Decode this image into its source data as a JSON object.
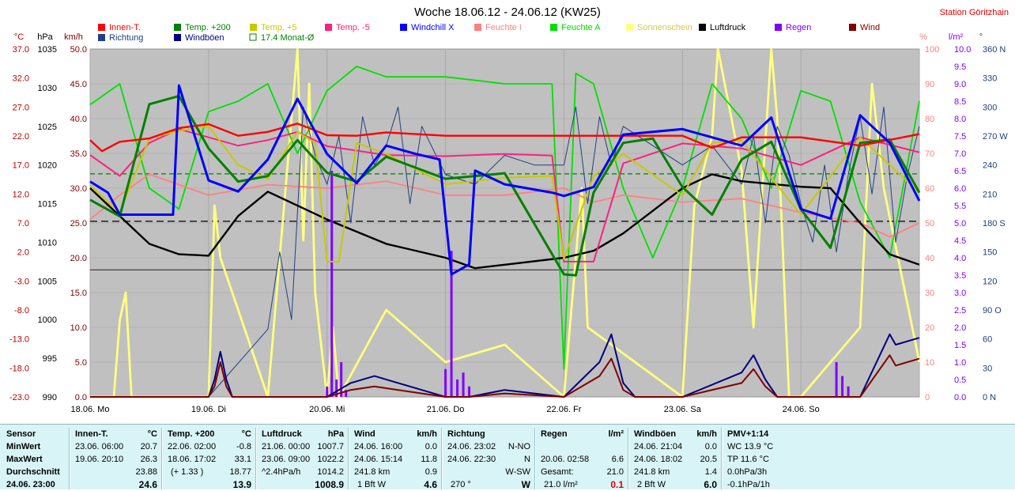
{
  "title": "Woche 18.06.12 - 24.06.12 (KW25)",
  "station": "Station Göritzhain",
  "colors": {
    "background": "#ffffff",
    "plot_bg": "#c0c0c0",
    "innen": "#ff0000",
    "temp200": "#008000",
    "temp5": "#c8c800",
    "temp_m5": "#ff2080",
    "windchill": "#0000ff",
    "feuchte_i": "#ff8080",
    "feuchte_a": "#00e000",
    "sonne": "#ffff80",
    "luftdruck": "#000000",
    "regen": "#8000ff",
    "wind": "#800000",
    "richtung": "#204080",
    "windboeen": "#000080",
    "monat": "#008000",
    "panel": "#d8f4f6"
  },
  "chart_data": {
    "type": "line",
    "title": "Woche 18.06.12 - 24.06.12 (KW25)",
    "x_labels": [
      "18.06. Mo",
      "19.06. Di",
      "20.06. Mi",
      "21.06. Do",
      "22.06. Fr",
      "23.06. Sa",
      "24.06. So"
    ],
    "axes": {
      "celsius": {
        "unit": "°C",
        "range": [
          -23.0,
          40.0
        ],
        "ticks": [
          "37.0",
          "32.0",
          "27.0",
          "22.0",
          "17.0",
          "12.0",
          "7.0",
          "2.0",
          "-3.0",
          "-8.0",
          "-13.0",
          "-18.0",
          "-23.0"
        ]
      },
      "hpa": {
        "unit": "hPa",
        "range": [
          990,
          1040
        ],
        "ticks": [
          "1035",
          "1030",
          "1025",
          "1020",
          "1015",
          "1010",
          "1005",
          "1000",
          "995",
          "990"
        ]
      },
      "kmh": {
        "unit": "km/h",
        "range": [
          0.0,
          50.0
        ],
        "ticks": [
          "50.0",
          "45.0",
          "40.0",
          "35.0",
          "30.0",
          "25.0",
          "20.0",
          "15.0",
          "10.0",
          "5.0",
          "0.0"
        ]
      },
      "percent": {
        "unit": "%",
        "range": [
          0,
          100
        ],
        "ticks": [
          "100",
          "90",
          "80",
          "70",
          "60",
          "50",
          "40",
          "30",
          "20",
          "10",
          "0"
        ]
      },
      "lm2": {
        "unit": "l/m²",
        "range": [
          0.0,
          10.0
        ],
        "ticks": [
          "10.0",
          "9.5",
          "9.0",
          "8.5",
          "8.0",
          "7.5",
          "7.0",
          "6.5",
          "6.0",
          "5.5",
          "5.0",
          "4.5",
          "4.0",
          "3.5",
          "3.0",
          "2.5",
          "2.0",
          "1.5",
          "1.0",
          "0.5",
          "0.0"
        ]
      },
      "deg": {
        "unit": "°",
        "range": [
          0,
          360
        ],
        "ticks": [
          "360 N",
          "330",
          "300",
          "270 W",
          "240",
          "210",
          "180 S",
          "150",
          "120",
          "90 O",
          "60",
          "30",
          "0 N"
        ]
      }
    },
    "legend": [
      {
        "name": "Innen-T.",
        "color": "#ff0000",
        "style": "box"
      },
      {
        "name": "Temp. +200",
        "color": "#008000",
        "style": "box"
      },
      {
        "name": "Temp. +5",
        "color": "#c8c800",
        "style": "box"
      },
      {
        "name": "Temp. -5",
        "color": "#ff2080",
        "style": "box"
      },
      {
        "name": "Windchill X",
        "color": "#0000ff",
        "style": "box"
      },
      {
        "name": "Feuchte I",
        "color": "#ff8080",
        "style": "box"
      },
      {
        "name": "Feuchte A",
        "color": "#00e000",
        "style": "box"
      },
      {
        "name": "Sonnenschein",
        "color": "#ffff80",
        "style": "box"
      },
      {
        "name": "Luftdruck",
        "color": "#000000",
        "style": "box"
      },
      {
        "name": "Regen",
        "color": "#8000ff",
        "style": "box"
      },
      {
        "name": "Wind",
        "color": "#800000",
        "style": "box"
      },
      {
        "name": "Richtung",
        "color": "#204080",
        "style": "box"
      },
      {
        "name": "Windböen",
        "color": "#000080",
        "style": "box"
      },
      {
        "name": "17.4 Monat-Ø",
        "color": "#008000",
        "style": "outline"
      }
    ],
    "reference_lines": [
      {
        "name": "Monat-Ø",
        "axis": "celsius",
        "value": 17.4,
        "color": "#008000",
        "dash": "6,4"
      },
      {
        "axis": "celsius",
        "value": 8.8,
        "color": "#000000",
        "dash": "9,5"
      },
      {
        "axis": "celsius",
        "value": 0.0,
        "color": "#404040",
        "dash": ""
      }
    ],
    "series": [
      {
        "name": "Innen-T.",
        "axis": "celsius",
        "color": "#ff0000",
        "width": 2.4,
        "x": [
          0,
          0.1,
          0.25,
          0.5,
          0.75,
          1.0,
          1.25,
          1.5,
          1.75,
          2.0,
          2.25,
          2.5,
          3.0,
          3.5,
          4.0,
          4.25,
          4.5,
          5.0,
          5.25,
          5.5,
          6.0,
          6.5,
          7.0
        ],
        "y": [
          23.5,
          21.5,
          23.2,
          23.8,
          25.7,
          26.4,
          24.3,
          25.0,
          26.5,
          24.4,
          24.3,
          24.9,
          24.3,
          24.3,
          24.3,
          24.3,
          24.3,
          24.3,
          22.1,
          24.0,
          24.0,
          22.5,
          24.6
        ]
      },
      {
        "name": "Temp. +5",
        "axis": "celsius",
        "color": "#c8c800",
        "width": 2.0,
        "x": [
          0,
          0.25,
          0.5,
          0.75,
          1.0,
          1.25,
          1.5,
          1.75,
          1.9,
          2.0,
          2.1,
          2.25,
          2.5,
          3.0,
          3.5,
          3.9,
          4.0,
          4.25,
          4.5,
          5.0,
          5.25,
          5.5,
          6.0,
          6.5,
          7.0
        ],
        "y": [
          15.3,
          10.5,
          23.8,
          25.2,
          26.0,
          19.0,
          16.5,
          25.0,
          23.0,
          1.5,
          1.5,
          23.0,
          21.0,
          15.5,
          16.7,
          17.0,
          2.0,
          17.0,
          21.0,
          13.5,
          23.0,
          23.4,
          10.0,
          24.0,
          14.0
        ]
      },
      {
        "name": "Temp. -5",
        "axis": "celsius",
        "color": "#ff2080",
        "width": 2.0,
        "x": [
          0,
          0.25,
          0.5,
          0.75,
          1.0,
          1.25,
          1.5,
          1.75,
          2.0,
          2.5,
          3.0,
          3.5,
          3.9,
          4.0,
          4.25,
          4.5,
          5.0,
          5.5,
          6.0,
          6.5,
          7.0
        ],
        "y": [
          20.8,
          17.0,
          23.0,
          25.5,
          24.0,
          22.5,
          23.5,
          25.0,
          22.4,
          20.8,
          20.6,
          21.0,
          20.7,
          1.5,
          1.5,
          19.3,
          22.9,
          22.0,
          19.0,
          24.0,
          21.3
        ]
      },
      {
        "name": "Windchill X",
        "axis": "celsius",
        "color": "#0000ff",
        "width": 3.0,
        "x": [
          0,
          0.15,
          0.25,
          0.7,
          0.75,
          1.0,
          1.25,
          1.5,
          1.75,
          2.0,
          2.25,
          2.5,
          2.75,
          2.95,
          3.05,
          3.2,
          3.25,
          3.5,
          3.9,
          4.0,
          4.25,
          4.5,
          5.0,
          5.5,
          5.75,
          6.0,
          6.25,
          6.5,
          6.75,
          7.0
        ],
        "y": [
          16.0,
          14.0,
          10.0,
          10.0,
          33.4,
          16.2,
          14.2,
          20.0,
          31.0,
          21.0,
          15.7,
          22.5,
          21.0,
          20.0,
          -0.8,
          1.0,
          18.0,
          15.5,
          14.0,
          13.4,
          15.0,
          24.5,
          25.5,
          22.5,
          27.6,
          11.0,
          9.3,
          28.0,
          23.0,
          12.5
        ]
      },
      {
        "name": "Temp. +200",
        "axis": "celsius",
        "color": "#008000",
        "width": 3.0,
        "x": [
          0,
          0.25,
          0.5,
          0.75,
          1.0,
          1.25,
          1.5,
          1.75,
          2.0,
          2.25,
          2.5,
          3.0,
          3.5,
          4.0,
          4.1,
          4.25,
          4.5,
          4.75,
          5.0,
          5.25,
          5.5,
          5.75,
          6.0,
          6.25,
          6.5,
          6.75,
          7.0
        ],
        "y": [
          12.7,
          9.7,
          30.0,
          31.5,
          22.0,
          16.0,
          17.0,
          23.5,
          17.6,
          16.0,
          20.5,
          16.5,
          17.5,
          -0.8,
          -1.0,
          14.0,
          23.0,
          23.8,
          15.0,
          10.0,
          20.0,
          23.2,
          11.0,
          4.0,
          23.0,
          23.6,
          14.0
        ]
      },
      {
        "name": "Feuchte I",
        "axis": "percent",
        "color": "#ff8080",
        "width": 1.8,
        "x": [
          0,
          0.25,
          0.5,
          1.0,
          1.5,
          2.0,
          2.5,
          3.0,
          3.5,
          4.0,
          4.25,
          4.5,
          5.0,
          5.5,
          6.0,
          6.5,
          6.75,
          7.0
        ],
        "y": [
          51,
          58,
          64,
          58,
          61,
          60,
          62,
          58,
          58,
          60,
          56,
          58,
          56,
          57,
          53,
          50,
          46,
          50
        ]
      },
      {
        "name": "Feuchte A",
        "axis": "percent",
        "color": "#00e000",
        "width": 1.8,
        "x": [
          0,
          0.25,
          0.5,
          0.75,
          1.0,
          1.25,
          1.5,
          1.75,
          2.0,
          2.25,
          2.5,
          3.0,
          3.5,
          3.9,
          4.0,
          4.1,
          4.25,
          4.5,
          4.75,
          5.0,
          5.25,
          5.5,
          5.75,
          6.0,
          6.25,
          6.5,
          6.75,
          7.0
        ],
        "y": [
          84,
          90,
          60,
          54,
          82,
          85,
          90,
          70,
          88,
          95,
          92,
          92,
          90,
          90,
          8,
          93,
          90,
          60,
          40,
          60,
          90,
          80,
          60,
          88,
          85,
          56,
          40,
          85
        ]
      },
      {
        "name": "Luftdruck",
        "axis": "hpa",
        "color": "#000000",
        "width": 2.4,
        "x": [
          0,
          0.5,
          0.75,
          1.0,
          1.25,
          1.5,
          2.0,
          2.5,
          3.0,
          3.25,
          3.5,
          4.0,
          4.25,
          4.5,
          5.0,
          5.25,
          5.5,
          6.0,
          6.25,
          6.5,
          6.75,
          7.0
        ],
        "y": [
          1020.0,
          1012.0,
          1010.5,
          1010.3,
          1016.0,
          1019.5,
          1015.5,
          1012.0,
          1010.0,
          1008.5,
          1009.0,
          1010.0,
          1011.0,
          1013.5,
          1020.0,
          1022.0,
          1021.0,
          1020.2,
          1020.0,
          1015.0,
          1010.5,
          1009.0
        ]
      },
      {
        "name": "Sonnenschein",
        "axis": "percent",
        "color": "#ffff80",
        "width": 2.8,
        "x": [
          0,
          0.2,
          0.25,
          0.3,
          0.35,
          1.0,
          1.05,
          1.1,
          1.5,
          1.75,
          1.8,
          1.85,
          1.9,
          2.0,
          2.05,
          2.1,
          2.5,
          3.0,
          3.5,
          4.0,
          4.1,
          4.15,
          4.2,
          5.0,
          5.1,
          5.25,
          5.3,
          5.5,
          5.6,
          5.75,
          5.8,
          5.85,
          5.9,
          6.0,
          6.5,
          6.6,
          6.7,
          7.0
        ],
        "y": [
          0,
          0,
          22,
          30,
          0,
          0,
          55,
          40,
          0,
          100,
          45,
          90,
          30,
          0,
          20,
          0,
          25,
          10,
          15,
          0,
          40,
          60,
          20,
          0,
          55,
          75,
          100,
          65,
          20,
          100,
          80,
          40,
          0,
          0,
          20,
          90,
          60,
          10
        ]
      },
      {
        "name": "Wind",
        "axis": "kmh",
        "color": "#800000",
        "width": 2.0,
        "x": [
          0,
          1.0,
          1.05,
          1.1,
          1.15,
          1.2,
          2.0,
          2.2,
          2.4,
          2.6,
          2.8,
          3.0,
          3.2,
          3.5,
          4.0,
          4.3,
          4.4,
          4.5,
          4.6,
          5.0,
          5.5,
          5.6,
          5.7,
          5.8,
          6.0,
          6.5,
          6.75,
          6.8,
          7.0
        ],
        "y": [
          0,
          0,
          1.5,
          5.0,
          1.5,
          0,
          0,
          1.0,
          1.5,
          1.0,
          0.5,
          0,
          0,
          0.5,
          0,
          3.0,
          5.5,
          1.0,
          0,
          0,
          2.0,
          4.0,
          1.5,
          0,
          0,
          0,
          6.0,
          4.5,
          5.5
        ]
      },
      {
        "name": "Windböen",
        "axis": "kmh",
        "color": "#000080",
        "width": 2.0,
        "x": [
          0,
          1.0,
          1.05,
          1.1,
          1.15,
          1.2,
          2.0,
          2.2,
          2.4,
          2.6,
          2.8,
          3.0,
          3.2,
          3.5,
          4.0,
          4.3,
          4.4,
          4.5,
          4.6,
          5.0,
          5.5,
          5.6,
          5.7,
          5.8,
          6.0,
          6.5,
          6.75,
          6.8,
          7.0
        ],
        "y": [
          0,
          0,
          2.5,
          6.5,
          2.5,
          0,
          0,
          2.0,
          3.0,
          2.0,
          1.0,
          0,
          0,
          1.0,
          0,
          5.0,
          9.0,
          2.0,
          0,
          0,
          3.5,
          6.0,
          2.5,
          0,
          0,
          0,
          9.0,
          7.5,
          8.5
        ]
      },
      {
        "name": "Richtung",
        "axis": "deg",
        "color": "#204080",
        "width": 1.0,
        "x": [
          0,
          0.5,
          1.0,
          1.5,
          1.6,
          1.7,
          1.8,
          1.9,
          2.0,
          2.1,
          2.2,
          2.3,
          2.4,
          2.5,
          2.6,
          2.7,
          2.8,
          3.0,
          3.25,
          3.5,
          3.75,
          4.0,
          4.1,
          4.2,
          4.3,
          4.4,
          4.5,
          5.0,
          5.25,
          5.5,
          5.6,
          5.7,
          5.8,
          5.9,
          6.0,
          6.1,
          6.2,
          6.3,
          6.4,
          6.5,
          6.6,
          6.7,
          6.8,
          6.9,
          7.0
        ],
        "y": [
          0,
          0,
          0,
          70,
          150,
          80,
          300,
          250,
          220,
          270,
          180,
          290,
          240,
          260,
          300,
          200,
          280,
          230,
          220,
          250,
          240,
          240,
          300,
          200,
          290,
          240,
          280,
          240,
          260,
          220,
          270,
          180,
          280,
          250,
          200,
          160,
          240,
          150,
          230,
          290,
          210,
          300,
          160,
          230,
          280
        ]
      },
      {
        "name": "Regen",
        "axis": "lm2",
        "color": "#8000ff",
        "width": 3.0,
        "bars": true,
        "x": [
          2.0,
          2.04,
          2.08,
          2.12,
          2.16,
          3.0,
          3.05,
          3.1,
          3.15,
          3.2,
          6.3,
          6.35,
          6.4
        ],
        "y": [
          0.3,
          6.5,
          0.5,
          1.0,
          0.2,
          0.8,
          4.2,
          0.5,
          0.7,
          0.3,
          1.0,
          0.6,
          0.3
        ]
      }
    ]
  },
  "stats": {
    "sensor": {
      "title": "Sensor",
      "rows": [
        "MinWert",
        "MaxWert",
        "Durchschnitt",
        "24.06. 23:00"
      ]
    },
    "innen": {
      "title": "Innen-T.",
      "unit": "°C",
      "min_time": "23.06. 06:00",
      "min": "20.7",
      "max_time": "19.06. 20:10",
      "max": "26.3",
      "avg": "23.88",
      "current": "24.6"
    },
    "temp200": {
      "title": "Temp. +200",
      "unit": "°C",
      "min_time": "22.06. 02:00",
      "min": "-0.8",
      "max_time": "18.06. 17:02",
      "max": "33.1",
      "avg_note": "(+ 1.33 )",
      "avg": "18.77",
      "current": "13.9"
    },
    "luftdruck": {
      "title": "Luftdruck",
      "unit": "hPa",
      "min_time": "21.06. 00:00",
      "min": "1007.7",
      "max_time": "23.06. 09:00",
      "max": "1022.2",
      "avg_note": "^2.4hPa/h",
      "avg": "1014.2",
      "current": "1008.9"
    },
    "wind": {
      "title": "Wind",
      "unit": "km/h",
      "min_time": "24.06. 16:00",
      "min": "0.0",
      "max_time": "24.06. 15:14",
      "max": "11.8",
      "avg_note": "241.8 km",
      "avg": "0.9",
      "cur_note": "1 Bft W",
      "current": "4.6"
    },
    "richtung": {
      "title": "Richtung",
      "min_time": "24.06. 23:02",
      "min": "N-NO",
      "max_time": "24.06. 22:30",
      "max": "N",
      "avg": "W-SW",
      "cur_note": "270 °",
      "current": "W"
    },
    "regen": {
      "title": "Regen",
      "unit": "l/m²",
      "max_time": "20.06. 02:58",
      "max": "6.6",
      "avg_note": "Gesamt:",
      "avg": "21.0",
      "cur_note": "21.0 l/m²",
      "current": "0.1"
    },
    "boeen": {
      "title": "Windböen",
      "unit": "km/h",
      "min_time": "24.06. 21:04",
      "min": "0.0",
      "max_time": "24.06. 18:02",
      "max": "20.5",
      "avg_note": "241.8 km",
      "avg": "1.4",
      "cur_note": "2 Bft W",
      "current": "6.0"
    },
    "pmv": {
      "title": "PMV+1:14",
      "r1": "WC 13.9 °C",
      "r2": "TP 11.6 °C",
      "r3": "0.0hPa/3h",
      "r4": "-0.1hPa/1h"
    }
  }
}
